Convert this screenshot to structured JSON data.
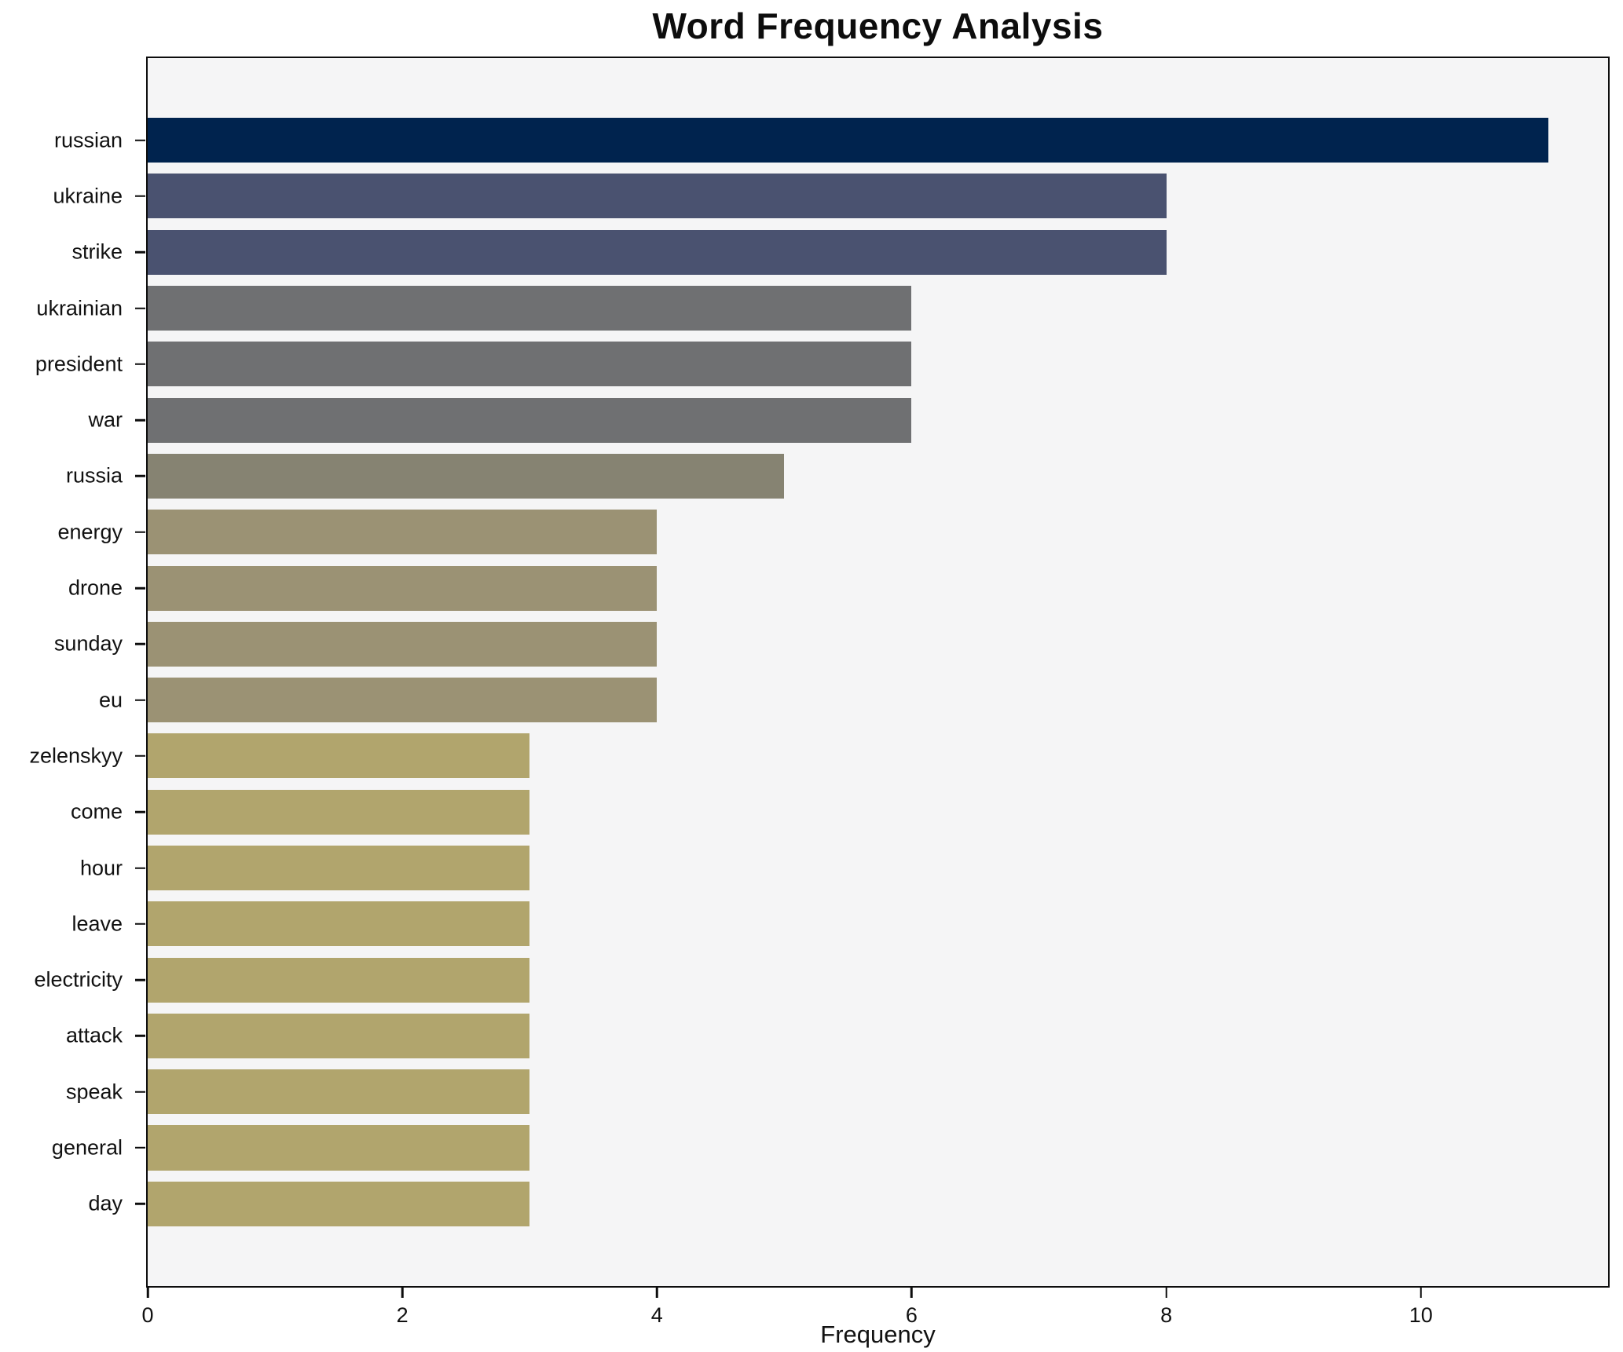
{
  "title": "Word Frequency Analysis",
  "chart_data": {
    "type": "bar",
    "orientation": "horizontal",
    "title": "Word Frequency Analysis",
    "xlabel": "Frequency",
    "ylabel": "",
    "categories": [
      "russian",
      "ukraine",
      "strike",
      "ukrainian",
      "president",
      "war",
      "russia",
      "energy",
      "drone",
      "sunday",
      "eu",
      "zelenskyy",
      "come",
      "hour",
      "leave",
      "electricity",
      "attack",
      "speak",
      "general",
      "day"
    ],
    "values": [
      11,
      8,
      8,
      6,
      6,
      6,
      5,
      4,
      4,
      4,
      4,
      3,
      3,
      3,
      3,
      3,
      3,
      3,
      3,
      3
    ],
    "bar_colors": [
      "#00234e",
      "#4a5270",
      "#4a5270",
      "#6f7072",
      "#6f7072",
      "#6f7072",
      "#868372",
      "#9b9274",
      "#9b9274",
      "#9b9274",
      "#9b9274",
      "#b1a56d",
      "#b1a56d",
      "#b1a56d",
      "#b1a56d",
      "#b1a56d",
      "#b1a56d",
      "#b1a56d",
      "#b1a56d",
      "#b1a56d"
    ],
    "x_ticks": [
      0,
      2,
      4,
      6,
      8,
      10
    ],
    "xlim": [
      0,
      11.47
    ],
    "grid": false,
    "legend": "none",
    "plot_bg": "#f5f5f6",
    "figure_bg": "#ffffff",
    "spine_color": "#0d0d0d"
  }
}
